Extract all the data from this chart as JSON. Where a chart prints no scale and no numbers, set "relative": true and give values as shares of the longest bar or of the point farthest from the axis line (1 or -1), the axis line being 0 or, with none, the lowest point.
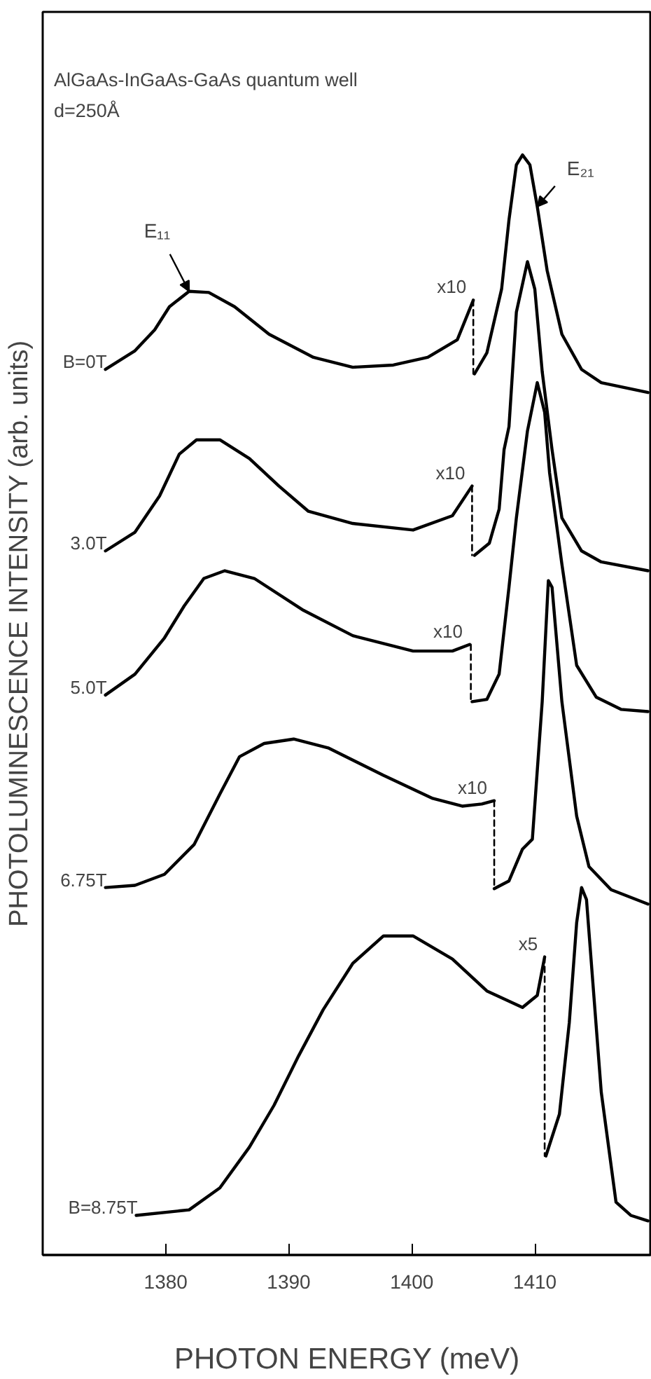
{
  "chart_data": {
    "type": "line",
    "title": "AlGaAs-InGaAs-GaAs quantum well",
    "subtitle": "d=250Å",
    "xlabel": "PHOTON ENERGY (meV)",
    "ylabel": "PHOTOLUMINESCENCE INTENSITY (arb. units)",
    "relative": true,
    "xlim": [
      1370,
      1419.5
    ],
    "xticks": [
      1380,
      1390,
      1400,
      1410
    ],
    "grid": false,
    "line_style": "solid",
    "series": [
      {
        "name": "B=0T",
        "color": "#000000",
        "x": [
          1375.1,
          1377.5,
          1379.1,
          1380.3,
          1381.9,
          1383.5,
          1385.6,
          1388.4,
          1392.0,
          1395.2,
          1398.5,
          1401.3,
          1403.7,
          1405.0
        ],
        "values": [
          0.805,
          0.822,
          0.841,
          0.862,
          0.876,
          0.875,
          0.862,
          0.837,
          0.816,
          0.807,
          0.809,
          0.816,
          0.832,
          0.868
        ]
      },
      {
        "color": "#000000",
        "line_style": "dashed",
        "x": [
          1405.0,
          1405.0
        ],
        "values": [
          0.868,
          0.801
        ]
      },
      {
        "color": "#000000",
        "x": [
          1405.1,
          1406.1,
          1407.3,
          1407.9,
          1408.5,
          1409.0,
          1409.6,
          1410.2,
          1411.0,
          1412.2,
          1413.8,
          1415.4,
          1419.2
        ],
        "values": [
          0.801,
          0.82,
          0.878,
          0.941,
          0.991,
          1.0,
          0.991,
          0.953,
          0.895,
          0.837,
          0.805,
          0.793,
          0.784
        ]
      },
      {
        "name": "3.0T",
        "color": "#000000",
        "x": [
          1375.1,
          1377.5,
          1379.5,
          1381.1,
          1382.5,
          1384.4,
          1386.8,
          1389.2,
          1391.6,
          1395.2,
          1400.1,
          1403.3,
          1404.9
        ],
        "values": [
          0.64,
          0.657,
          0.69,
          0.728,
          0.741,
          0.741,
          0.724,
          0.699,
          0.676,
          0.665,
          0.659,
          0.672,
          0.699
        ]
      },
      {
        "color": "#000000",
        "line_style": "dashed",
        "x": [
          1404.9,
          1404.9
        ],
        "values": [
          0.699,
          0.636
        ]
      },
      {
        "color": "#000000",
        "x": [
          1405.1,
          1406.3,
          1407.1,
          1407.5,
          1407.9,
          1408.5,
          1409.4,
          1410.0,
          1410.6,
          1411.4,
          1412.2,
          1413.8,
          1415.4,
          1419.2
        ],
        "values": [
          0.636,
          0.647,
          0.678,
          0.732,
          0.753,
          0.857,
          0.903,
          0.878,
          0.803,
          0.732,
          0.67,
          0.64,
          0.63,
          0.622
        ]
      },
      {
        "name": "5.0T",
        "color": "#000000",
        "x": [
          1375.1,
          1377.5,
          1379.9,
          1381.5,
          1383.1,
          1384.8,
          1387.2,
          1391.2,
          1395.2,
          1400.1,
          1403.3,
          1404.7
        ],
        "values": [
          0.509,
          0.528,
          0.561,
          0.59,
          0.615,
          0.622,
          0.615,
          0.586,
          0.563,
          0.549,
          0.549,
          0.555
        ]
      },
      {
        "color": "#000000",
        "line_style": "dashed",
        "x": [
          1404.8,
          1404.8
        ],
        "values": [
          0.555,
          0.503
        ]
      },
      {
        "color": "#000000",
        "x": [
          1404.9,
          1406.1,
          1407.1,
          1407.9,
          1408.5,
          1409.4,
          1410.0,
          1410.2,
          1410.8,
          1411.2,
          1412.2,
          1413.4,
          1415.0,
          1417.0,
          1419.2
        ],
        "values": [
          0.503,
          0.505,
          0.528,
          0.607,
          0.67,
          0.749,
          0.782,
          0.793,
          0.766,
          0.711,
          0.628,
          0.536,
          0.507,
          0.496,
          0.494
        ]
      },
      {
        "name": "6.75T",
        "color": "#000000",
        "x": [
          1375.1,
          1377.5,
          1379.9,
          1382.3,
          1384.4,
          1386.0,
          1388.0,
          1390.4,
          1393.2,
          1397.7,
          1401.7,
          1404.1,
          1405.7,
          1406.7
        ],
        "values": [
          0.334,
          0.336,
          0.346,
          0.373,
          0.419,
          0.453,
          0.465,
          0.469,
          0.461,
          0.436,
          0.415,
          0.408,
          0.41,
          0.413
        ]
      },
      {
        "color": "#000000",
        "line_style": "dashed",
        "x": [
          1406.7,
          1406.7
        ],
        "values": [
          0.413,
          0.334
        ]
      },
      {
        "color": "#000000",
        "x": [
          1406.7,
          1407.9,
          1409.0,
          1409.8,
          1410.6,
          1411.1,
          1411.4,
          1412.2,
          1413.4,
          1414.4,
          1416.2,
          1419.2
        ],
        "values": [
          0.333,
          0.34,
          0.369,
          0.378,
          0.503,
          0.613,
          0.607,
          0.503,
          0.399,
          0.353,
          0.332,
          0.319
        ]
      },
      {
        "name": "B=8.75T",
        "color": "#000000",
        "x": [
          1377.6,
          1381.9,
          1384.4,
          1386.8,
          1388.8,
          1390.8,
          1392.8,
          1395.2,
          1397.7,
          1400.1,
          1403.3,
          1406.1,
          1409.0,
          1410.2,
          1410.8
        ],
        "values": [
          0.036,
          0.041,
          0.061,
          0.098,
          0.136,
          0.181,
          0.223,
          0.265,
          0.29,
          0.29,
          0.269,
          0.24,
          0.225,
          0.236,
          0.271
        ]
      },
      {
        "color": "#000000",
        "line_style": "dashed",
        "x": [
          1410.8,
          1410.8
        ],
        "values": [
          0.271,
          0.09
        ]
      },
      {
        "color": "#000000",
        "x": [
          1410.9,
          1412.0,
          1412.8,
          1413.4,
          1413.8,
          1414.2,
          1415.4,
          1416.6,
          1417.8,
          1419.2
        ],
        "values": [
          0.09,
          0.128,
          0.211,
          0.302,
          0.334,
          0.323,
          0.148,
          0.048,
          0.036,
          0.031
        ]
      }
    ],
    "annotations": [
      {
        "text": "E₁₁",
        "x": 1381.9,
        "y": 0.876
      },
      {
        "text": "E₂₁",
        "x": 1410.2,
        "y": 0.953
      },
      {
        "text": "x10",
        "x": 1405.0,
        "y": 0.868
      },
      {
        "text": "x10",
        "x": 1404.9,
        "y": 0.699
      },
      {
        "text": "x10",
        "x": 1404.7,
        "y": 0.555
      },
      {
        "text": "x10",
        "x": 1406.7,
        "y": 0.413
      },
      {
        "text": "x5",
        "x": 1410.8,
        "y": 0.271
      }
    ]
  }
}
